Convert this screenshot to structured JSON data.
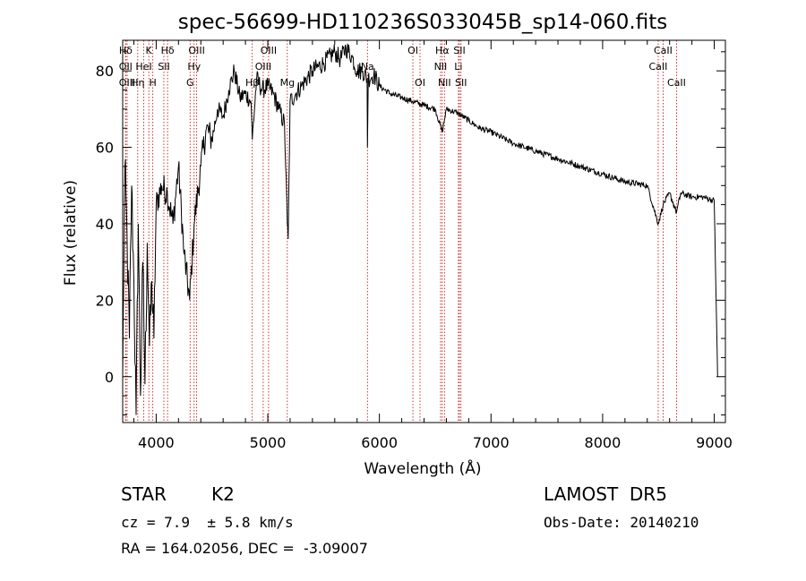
{
  "chart_data": {
    "type": "line",
    "title": "spec-56699-HD110236S033045B_sp14-060.fits",
    "xlabel": "Wavelength (Å)",
    "ylabel": "Flux (relative)",
    "xlim": [
      3700,
      9100
    ],
    "ylim": [
      -12,
      88
    ],
    "x_ticks": [
      4000,
      5000,
      6000,
      7000,
      8000,
      9000
    ],
    "y_ticks": [
      0,
      20,
      40,
      60,
      80
    ],
    "grid": false,
    "series": [
      {
        "x": [
          3700,
          3720,
          3740,
          3760,
          3780,
          3800,
          3820,
          3840,
          3860,
          3880,
          3900,
          3920,
          3940,
          3960,
          3980,
          4000,
          4050,
          4100,
          4150,
          4200,
          4250,
          4300,
          4340,
          4400,
          4450,
          4500,
          4550,
          4600,
          4650,
          4700,
          4750,
          4800,
          4850,
          4861,
          4900,
          4950,
          5000,
          5050,
          5100,
          5150,
          5175,
          5183,
          5200,
          5250,
          5300,
          5400,
          5500,
          5600,
          5650,
          5700,
          5750,
          5800,
          5850,
          5890,
          5893,
          5900,
          5950,
          6000,
          6100,
          6200,
          6300,
          6400,
          6500,
          6563,
          6600,
          6700,
          6800,
          6900,
          7000,
          7200,
          7400,
          7600,
          7800,
          8000,
          8200,
          8400,
          8498,
          8542,
          8600,
          8662,
          8700,
          8800,
          8900,
          9000,
          9030
        ],
        "y": [
          0,
          55,
          35,
          10,
          50,
          25,
          -10,
          40,
          -5,
          30,
          -2,
          35,
          8,
          25,
          10,
          45,
          50,
          48,
          40,
          55,
          32,
          20,
          40,
          55,
          65,
          62,
          70,
          68,
          75,
          80,
          73,
          74,
          72,
          62,
          78,
          75,
          76,
          74,
          70,
          66,
          40,
          36,
          72,
          74,
          76,
          80,
          82,
          85,
          83,
          86,
          84,
          80,
          80,
          78,
          60,
          78,
          79,
          76,
          74,
          73,
          72,
          71,
          70,
          64,
          70,
          69,
          67,
          65,
          64,
          61,
          59,
          57,
          55,
          53,
          51,
          50,
          40,
          45,
          48,
          43,
          48,
          47,
          47,
          46,
          0
        ]
      }
    ],
    "spectral_lines": [
      {
        "label": "Hδ",
        "x": 3727,
        "row": 0
      },
      {
        "label": "OII",
        "x": 3727,
        "row": 1
      },
      {
        "label": "OIII",
        "x": 3740,
        "row": 2
      },
      {
        "label": "K",
        "x": 3934,
        "row": 0
      },
      {
        "label": "HeI",
        "x": 3889,
        "row": 1
      },
      {
        "label": "Hη",
        "x": 3835,
        "row": 2
      },
      {
        "label": "SII",
        "x": 4069,
        "row": 1
      },
      {
        "label": "H",
        "x": 3970,
        "row": 2
      },
      {
        "label": "Hδ",
        "x": 4102,
        "row": 0
      },
      {
        "label": "OIII",
        "x": 4363,
        "row": 0
      },
      {
        "label": "Hγ",
        "x": 4340,
        "row": 1
      },
      {
        "label": "G",
        "x": 4304,
        "row": 2
      },
      {
        "label": "OIII",
        "x": 5007,
        "row": 0
      },
      {
        "label": "OIII",
        "x": 4959,
        "row": 1
      },
      {
        "label": "Hβ",
        "x": 4861,
        "row": 2
      },
      {
        "label": "Mg",
        "x": 5175,
        "row": 2
      },
      {
        "label": "Na",
        "x": 5893,
        "row": 1
      },
      {
        "label": "OI",
        "x": 6300,
        "row": 0
      },
      {
        "label": "OI",
        "x": 6364,
        "row": 2
      },
      {
        "label": "Hα",
        "x": 6563,
        "row": 0
      },
      {
        "label": "SII",
        "x": 6717,
        "row": 0
      },
      {
        "label": "NII",
        "x": 6548,
        "row": 1
      },
      {
        "label": "Li",
        "x": 6708,
        "row": 1
      },
      {
        "label": "NII",
        "x": 6583,
        "row": 2
      },
      {
        "label": "SII",
        "x": 6731,
        "row": 2
      },
      {
        "label": "CaII",
        "x": 8542,
        "row": 0
      },
      {
        "label": "CaII",
        "x": 8498,
        "row": 1
      },
      {
        "label": "CaII",
        "x": 8662,
        "row": 2
      }
    ]
  },
  "info": {
    "object_type": "STAR",
    "subclass": "K2",
    "survey": "LAMOST  DR5",
    "redshift": "cz = 7.9  ± 5.8 km/s",
    "obs_date": "Obs-Date: 20140210",
    "coords": "RA = 164.02056, DEC =  -3.09007"
  },
  "colors": {
    "spectrum": "#000000",
    "line_markers": "#c00000",
    "axes": "#000000"
  }
}
